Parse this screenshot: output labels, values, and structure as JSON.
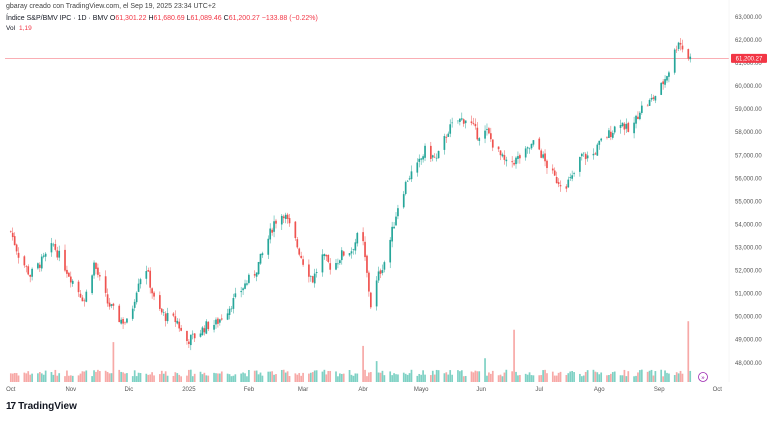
{
  "header": {
    "meta": "gbaray creado con TradingView.com, el Sep 19, 2025 23:34 UTC+2",
    "symbol": "Índice S&P/BMV IPC · 1D · BMV",
    "o_label": "O",
    "o_value": "61,301.22",
    "h_label": "H",
    "h_value": "61,680.69",
    "l_label": "L",
    "l_value": "61,089.46",
    "c_label": "C",
    "c_value": "61,200.27",
    "change": "−133.88 (−0.22%)",
    "vol_label": "Vol",
    "vol_value": "1,19"
  },
  "price_label": "61,200.27",
  "brand": {
    "icon": "17",
    "name": "TradingView",
    "icon_name": "tradingview-logo-icon"
  },
  "colors": {
    "up": "#26a69a",
    "down": "#ef5350",
    "vol_up": "#7ed1c4",
    "vol_down": "#f7a9a7",
    "price_line": "#f23645"
  },
  "chart_data": {
    "type": "candlestick",
    "y_ticks": [
      "48,000.00",
      "49,000.00",
      "50,000.00",
      "51,000.00",
      "52,000.00",
      "53,000.00",
      "54,000.00",
      "55,000.00",
      "56,000.00",
      "57,000.00",
      "58,000.00",
      "59,000.00",
      "60,000.00",
      "61,000.00",
      "62,000.00",
      "63,000.00"
    ],
    "ylim": [
      47600,
      63300
    ],
    "x_ticks": [
      {
        "label": "Oct",
        "day": 0
      },
      {
        "label": "Nov",
        "day": 31
      },
      {
        "label": "Dic",
        "day": 61
      },
      {
        "label": "2025",
        "day": 92
      },
      {
        "label": "Feb",
        "day": 123
      },
      {
        "label": "Mar",
        "day": 151
      },
      {
        "label": "Abr",
        "day": 182
      },
      {
        "label": "Mayo",
        "day": 212
      },
      {
        "label": "Jun",
        "day": 243
      },
      {
        "label": "Jul",
        "day": 273
      },
      {
        "label": "Ago",
        "day": 304
      },
      {
        "label": "Sep",
        "day": 335
      },
      {
        "label": "Oct",
        "day": 365
      }
    ],
    "x_range_days": [
      -3,
      370
    ],
    "last_close": 61200.27,
    "anchors": [
      [
        -2,
        54200
      ],
      [
        4,
        52700
      ],
      [
        10,
        51800
      ],
      [
        17,
        52500
      ],
      [
        22,
        53100
      ],
      [
        31,
        51700
      ],
      [
        38,
        50700
      ],
      [
        43,
        52300
      ],
      [
        50,
        50600
      ],
      [
        56,
        49900
      ],
      [
        61,
        49700
      ],
      [
        66,
        51600
      ],
      [
        70,
        52100
      ],
      [
        75,
        50400
      ],
      [
        80,
        50000
      ],
      [
        86,
        49800
      ],
      [
        90,
        48900
      ],
      [
        96,
        49200
      ],
      [
        101,
        49600
      ],
      [
        106,
        49700
      ],
      [
        111,
        50200
      ],
      [
        116,
        50800
      ],
      [
        121,
        51400
      ],
      [
        126,
        51900
      ],
      [
        131,
        52900
      ],
      [
        136,
        54100
      ],
      [
        141,
        54500
      ],
      [
        146,
        53500
      ],
      [
        151,
        52400
      ],
      [
        156,
        51600
      ],
      [
        161,
        52600
      ],
      [
        166,
        52100
      ],
      [
        171,
        52700
      ],
      [
        176,
        52900
      ],
      [
        181,
        53800
      ],
      [
        186,
        50500
      ],
      [
        190,
        51800
      ],
      [
        194,
        52600
      ],
      [
        200,
        54800
      ],
      [
        205,
        56000
      ],
      [
        210,
        56500
      ],
      [
        214,
        57200
      ],
      [
        220,
        56800
      ],
      [
        226,
        58100
      ],
      [
        231,
        58500
      ],
      [
        236,
        58600
      ],
      [
        241,
        57900
      ],
      [
        246,
        58000
      ],
      [
        251,
        57200
      ],
      [
        256,
        56600
      ],
      [
        261,
        56800
      ],
      [
        266,
        57100
      ],
      [
        271,
        57600
      ],
      [
        276,
        56700
      ],
      [
        281,
        56000
      ],
      [
        286,
        55700
      ],
      [
        290,
        56000
      ],
      [
        295,
        57000
      ],
      [
        300,
        56900
      ],
      [
        305,
        57600
      ],
      [
        310,
        58000
      ],
      [
        315,
        58500
      ],
      [
        320,
        57900
      ],
      [
        325,
        59000
      ],
      [
        330,
        59300
      ],
      [
        335,
        59800
      ],
      [
        340,
        60700
      ],
      [
        345,
        62000
      ],
      [
        349,
        61300
      ],
      [
        351,
        61200
      ]
    ],
    "volume_spikes": [
      {
        "day": 53,
        "value": 0.42
      },
      {
        "day": 182,
        "value": 0.38
      },
      {
        "day": 188,
        "value": 0.22
      },
      {
        "day": 245,
        "value": 0.25
      },
      {
        "day": 260,
        "value": 0.55
      },
      {
        "day": 326,
        "value": 0.13
      },
      {
        "day": 350,
        "value": 0.64
      }
    ]
  }
}
